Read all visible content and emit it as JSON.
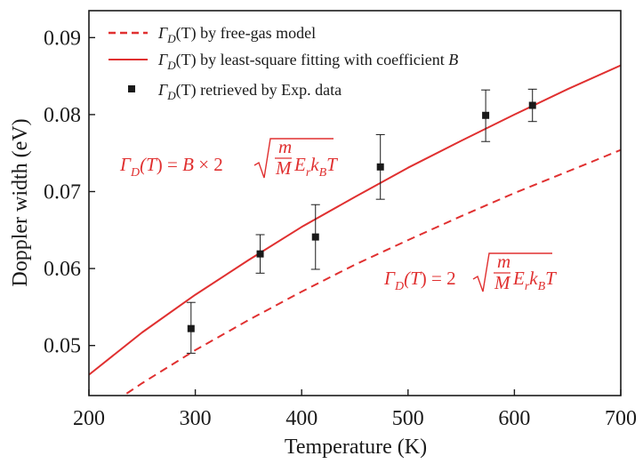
{
  "chart_data": {
    "type": "line",
    "title": "",
    "xlabel": "Temperature (K)",
    "ylabel": "Doppler width (eV)",
    "xlim": [
      200,
      700
    ],
    "ylim": [
      0.0435,
      0.0935
    ],
    "xticks": [
      200,
      300,
      400,
      500,
      600,
      700
    ],
    "xtick_labels": [
      "200",
      "300",
      "400",
      "500",
      "600",
      "700"
    ],
    "yticks": [
      0.05,
      0.06,
      0.07,
      0.08,
      0.09
    ],
    "ytick_labels": [
      "0.05",
      "0.06",
      "0.07",
      "0.08",
      "0.09"
    ],
    "grid": false,
    "legend_position": "top-left",
    "colors": {
      "model": "#e03030",
      "data": "#1a1a1a",
      "axis": "#1a1a1a"
    },
    "legend": [
      {
        "kind": "dashed-line",
        "label": "Γ_D(T) by free-gas model"
      },
      {
        "kind": "solid-line",
        "label": "Γ_D(T) by least-square fitting with coefficient B"
      },
      {
        "kind": "square-marker",
        "label": "Γ_D(T) retrieved by Exp. data"
      }
    ],
    "series": [
      {
        "name": "Γ_D(T) by free-gas model",
        "style": "dashed",
        "color": "#e03030",
        "x": [
          225,
          250,
          300,
          350,
          400,
          450,
          500,
          550,
          600,
          650,
          700
        ],
        "y": [
          0.0428,
          0.0451,
          0.0494,
          0.0533,
          0.057,
          0.0605,
          0.0637,
          0.0668,
          0.0698,
          0.0726,
          0.0754
        ]
      },
      {
        "name": "Γ_D(T) by least-square fitting with coefficient B",
        "style": "solid",
        "color": "#e03030",
        "x": [
          200,
          250,
          300,
          350,
          400,
          450,
          500,
          550,
          600,
          650,
          700
        ],
        "y": [
          0.0462,
          0.0517,
          0.0566,
          0.0611,
          0.0654,
          0.0693,
          0.0731,
          0.0766,
          0.08,
          0.0833,
          0.0864
        ]
      },
      {
        "name": "Γ_D(T) retrieved by Exp. data",
        "style": "points",
        "color": "#1a1a1a",
        "x": [
          296,
          361,
          413,
          474,
          573,
          617
        ],
        "y": [
          0.0522,
          0.0619,
          0.0641,
          0.0732,
          0.0799,
          0.0812
        ],
        "yerr_low": [
          0.049,
          0.0594,
          0.0599,
          0.069,
          0.0765,
          0.0791
        ],
        "yerr_high": [
          0.0556,
          0.0644,
          0.0683,
          0.0774,
          0.0832,
          0.0833
        ]
      }
    ],
    "annotations": [
      {
        "id": "fit",
        "prefix": "Γ",
        "sub": "D",
        "mid": "(T) = B × 2",
        "frac_num": "m",
        "frac_den": "M",
        "tail": "E",
        "tail_sub1": "r",
        "tail_k": "k",
        "tail_sub2": "B",
        "tail_end": "T"
      },
      {
        "id": "free",
        "prefix": "Γ",
        "sub": "D",
        "mid": "(T) = 2",
        "frac_num": "m",
        "frac_den": "M",
        "tail": "E",
        "tail_sub1": "r",
        "tail_k": "k",
        "tail_sub2": "B",
        "tail_end": "T"
      }
    ]
  }
}
